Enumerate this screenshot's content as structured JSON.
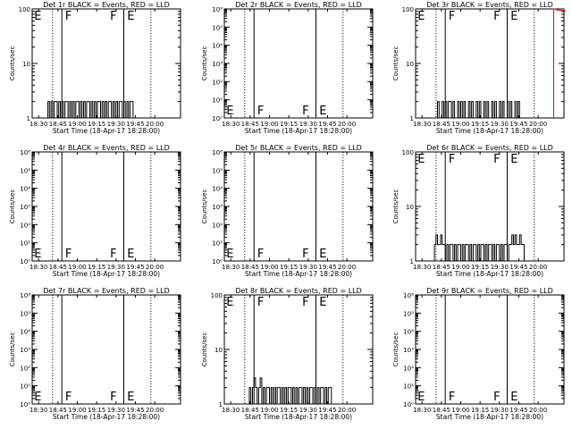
{
  "chart_data": [
    {
      "type": "line",
      "title": "Det 1r BLACK = Events, RED = LLD",
      "xlabel": "Start Time (18-Apr-17 18:28:00)",
      "ylabel": "Counts/sec",
      "x_ticks": [
        "18:30",
        "18:45",
        "19:00",
        "19:15",
        "19:30",
        "19:45",
        "20:00"
      ],
      "y_scale": "log",
      "ylim": [
        1,
        100
      ],
      "y_ticks": [
        "1",
        "10",
        "100"
      ],
      "annotations": [
        "E",
        "F",
        "F",
        "E"
      ],
      "series": [
        {
          "color": "#000000",
          "x": [
            18.6,
            18.62,
            18.64,
            18.66,
            18.68,
            18.7,
            18.72,
            18.74,
            18.76,
            18.78,
            18.8,
            18.82,
            18.84,
            18.86,
            18.88,
            18.9,
            18.92,
            18.94,
            18.96,
            18.98,
            19.0,
            19.02,
            19.04,
            19.06,
            19.08,
            19.1,
            19.12,
            19.14,
            19.16,
            19.18,
            19.2,
            19.22,
            19.24,
            19.26,
            19.28,
            19.3,
            19.32,
            19.34,
            19.36,
            19.38,
            19.4,
            19.42,
            19.44,
            19.46,
            19.48,
            19.5,
            19.52,
            19.54,
            19.56,
            19.58,
            19.6,
            19.62,
            19.64,
            19.66,
            19.68,
            19.7,
            19.72
          ],
          "y": [
            1,
            2,
            1,
            2,
            1,
            2,
            2,
            1,
            2,
            1,
            2,
            1,
            2,
            2,
            1,
            2,
            1,
            2,
            1,
            2,
            2,
            1,
            2,
            1,
            2,
            1,
            2,
            2,
            1,
            2,
            1,
            2,
            1,
            2,
            2,
            1,
            2,
            1,
            2,
            1,
            2,
            2,
            1,
            2,
            1,
            2,
            1,
            2,
            2,
            1,
            2,
            1,
            2,
            1,
            2,
            2,
            1
          ]
        }
      ]
    },
    {
      "type": "line",
      "title": "Det 2r BLACK = Events, RED = LLD",
      "xlabel": "Start Time (18-Apr-17 18:28:00)",
      "ylabel": "Counts/sec",
      "x_ticks": [
        "18:30",
        "18:45",
        "19:00",
        "19:15",
        "19:30",
        "19:45",
        "20:00"
      ],
      "y_scale": "log",
      "ylim": [
        1,
        1000000
      ],
      "y_ticks": [
        "10⁰",
        "10¹",
        "10²",
        "10³",
        "10⁴",
        "10⁵",
        "10⁶"
      ],
      "annotations": [
        "E",
        "F",
        "F",
        "E"
      ],
      "series": []
    },
    {
      "type": "line",
      "title": "Det 3r BLACK = Events, RED = LLD",
      "xlabel": "Start Time (18-Apr-17 18:28:00)",
      "ylabel": "Counts/sec",
      "x_ticks": [
        "18:30",
        "18:45",
        "19:00",
        "19:15",
        "19:30",
        "19:45",
        "20:00"
      ],
      "y_scale": "log",
      "ylim": [
        1,
        100
      ],
      "y_ticks": [
        "1",
        "10",
        "100"
      ],
      "annotations": [
        "E",
        "F",
        "F",
        "E"
      ],
      "series": [
        {
          "color": "#000000",
          "x": [
            18.66,
            18.68,
            18.7,
            18.72,
            18.74,
            18.76,
            18.78,
            18.8,
            18.82,
            18.84,
            18.86,
            18.88,
            18.9,
            18.92,
            18.94,
            18.96,
            18.98,
            19.0,
            19.02,
            19.04,
            19.06,
            19.08,
            19.1,
            19.12,
            19.14,
            19.16,
            19.18,
            19.2,
            19.22,
            19.24,
            19.26,
            19.28,
            19.3,
            19.32,
            19.34,
            19.36,
            19.38,
            19.4,
            19.42,
            19.44,
            19.46,
            19.48,
            19.5,
            19.52,
            19.54,
            19.56,
            19.58,
            19.6,
            19.62,
            19.64,
            19.66,
            19.68,
            19.7,
            19.72,
            19.74,
            19.76,
            19.78
          ],
          "y": [
            1,
            1,
            2,
            1,
            1,
            2,
            1,
            2,
            1,
            2,
            2,
            1,
            2,
            1,
            1,
            2,
            1,
            2,
            1,
            2,
            1,
            1,
            2,
            1,
            2,
            1,
            1,
            2,
            1,
            2,
            1,
            1,
            2,
            1,
            2,
            1,
            1,
            2,
            1,
            2,
            1,
            1,
            2,
            1,
            2,
            1,
            1,
            2,
            1,
            2,
            1,
            1,
            2,
            1,
            2,
            1,
            1
          ]
        },
        {
          "color": "#ff0000",
          "x": [
            20.2,
            20.22,
            20.24,
            20.26,
            20.28,
            20.3,
            20.32,
            20.34
          ],
          "y": [
            100,
            98,
            96,
            95,
            94,
            93,
            93,
            92
          ]
        }
      ]
    },
    {
      "type": "line",
      "title": "Det 4r BLACK = Events, RED = LLD",
      "xlabel": "Start Time (18-Apr-17 18:28:00)",
      "ylabel": "Counts/sec",
      "x_ticks": [
        "18:30",
        "18:45",
        "19:00",
        "19:15",
        "19:30",
        "19:45",
        "20:00"
      ],
      "y_scale": "log",
      "ylim": [
        1,
        1000000
      ],
      "y_ticks": [
        "10⁰",
        "10¹",
        "10²",
        "10³",
        "10⁴",
        "10⁵",
        "10⁶"
      ],
      "annotations": [
        "E",
        "F",
        "F",
        "E"
      ],
      "series": []
    },
    {
      "type": "line",
      "title": "Det 5r BLACK = Events, RED = LLD",
      "xlabel": "Start Time (18-Apr-17 18:28:00)",
      "ylabel": "Counts/sec",
      "x_ticks": [
        "18:30",
        "18:45",
        "19:00",
        "19:15",
        "19:30",
        "19:45",
        "20:00"
      ],
      "y_scale": "log",
      "ylim": [
        1,
        1000000
      ],
      "y_ticks": [
        "10⁰",
        "10¹",
        "10²",
        "10³",
        "10⁴",
        "10⁵",
        "10⁶"
      ],
      "annotations": [
        "E",
        "F",
        "F",
        "E"
      ],
      "series": []
    },
    {
      "type": "line",
      "title": "Det 6r BLACK = Events, RED = LLD",
      "xlabel": "Start Time (18-Apr-17 18:28:00)",
      "ylabel": "Counts/sec",
      "x_ticks": [
        "18:30",
        "18:45",
        "19:00",
        "19:15",
        "19:30",
        "19:45",
        "20:00"
      ],
      "y_scale": "log",
      "ylim": [
        1,
        100
      ],
      "y_ticks": [
        "1",
        "10",
        "100"
      ],
      "annotations": [
        "E",
        "F",
        "F",
        "E"
      ],
      "series": [
        {
          "color": "#000000",
          "x": [
            18.64,
            18.66,
            18.68,
            18.7,
            18.72,
            18.74,
            18.76,
            18.78,
            18.8,
            18.82,
            18.84,
            18.86,
            18.88,
            18.9,
            18.92,
            18.94,
            18.96,
            18.98,
            19.0,
            19.02,
            19.04,
            19.06,
            19.08,
            19.1,
            19.12,
            19.14,
            19.16,
            19.18,
            19.2,
            19.22,
            19.24,
            19.26,
            19.28,
            19.3,
            19.32,
            19.34,
            19.36,
            19.38,
            19.4,
            19.42,
            19.44,
            19.46,
            19.48,
            19.5,
            19.52,
            19.54,
            19.56,
            19.58,
            19.6,
            19.62,
            19.64,
            19.66,
            19.68,
            19.7,
            19.72,
            19.74,
            19.76,
            19.78,
            19.8,
            19.82
          ],
          "y": [
            1,
            2,
            3,
            2,
            2,
            3,
            2,
            2,
            1,
            2,
            1,
            2,
            2,
            1,
            2,
            1,
            2,
            2,
            1,
            2,
            1,
            2,
            2,
            1,
            2,
            1,
            2,
            2,
            1,
            2,
            1,
            2,
            2,
            1,
            2,
            1,
            2,
            2,
            1,
            2,
            1,
            2,
            2,
            1,
            2,
            1,
            2,
            2,
            1,
            2,
            2,
            3,
            2,
            3,
            2,
            2,
            3,
            2,
            2,
            1
          ]
        }
      ]
    },
    {
      "type": "line",
      "title": "Det 7r BLACK = Events, RED = LLD",
      "xlabel": "Start Time (18-Apr-17 18:28:00)",
      "ylabel": "Counts/sec",
      "x_ticks": [
        "18:30",
        "18:45",
        "19:00",
        "19:15",
        "19:30",
        "19:45",
        "20:00"
      ],
      "y_scale": "log",
      "ylim": [
        1,
        1000000
      ],
      "y_ticks": [
        "10⁰",
        "10¹",
        "10²",
        "10³",
        "10⁴",
        "10⁵",
        "10⁶"
      ],
      "annotations": [
        "E",
        "F",
        "F",
        "E"
      ],
      "series": []
    },
    {
      "type": "line",
      "title": "Det 8r BLACK = Events, RED = LLD",
      "xlabel": "Start Time (18-Apr-17 18:28:00)",
      "ylabel": "Counts/sec",
      "x_ticks": [
        "18:30",
        "18:45",
        "19:00",
        "19:15",
        "19:30",
        "19:45",
        "20:00"
      ],
      "y_scale": "log",
      "ylim": [
        1,
        100
      ],
      "y_ticks": [
        "1",
        "10",
        "100"
      ],
      "annotations": [
        "E",
        "F",
        "F",
        "E"
      ],
      "series": [
        {
          "color": "#000000",
          "x": [
            18.72,
            18.74,
            18.76,
            18.78,
            18.8,
            18.82,
            18.84,
            18.86,
            18.88,
            18.9,
            18.92,
            18.94,
            18.96,
            18.98,
            19.0,
            19.02,
            19.04,
            19.06,
            19.08,
            19.1,
            19.12,
            19.14,
            19.16,
            19.18,
            19.2,
            19.22,
            19.24,
            19.26,
            19.28,
            19.3,
            19.32,
            19.34,
            19.36,
            19.38,
            19.4,
            19.42,
            19.44,
            19.46,
            19.48,
            19.5,
            19.52,
            19.54,
            19.56,
            19.58,
            19.6,
            19.62,
            19.64,
            19.66,
            19.68,
            19.7,
            19.72,
            19.74,
            19.76,
            19.78,
            19.8,
            19.82
          ],
          "y": [
            1,
            2,
            1,
            2,
            3,
            2,
            1,
            2,
            3,
            1,
            2,
            1,
            2,
            2,
            1,
            2,
            1,
            2,
            1,
            2,
            2,
            1,
            2,
            1,
            2,
            1,
            2,
            2,
            1,
            2,
            1,
            2,
            1,
            2,
            2,
            1,
            2,
            1,
            2,
            1,
            2,
            2,
            1,
            2,
            1,
            2,
            1,
            2,
            2,
            1,
            2,
            1,
            2,
            2,
            1,
            1
          ]
        }
      ]
    },
    {
      "type": "line",
      "title": "Det 9r BLACK = Events, RED = LLD",
      "xlabel": "Start Time (18-Apr-17 18:28:00)",
      "ylabel": "Counts/sec",
      "x_ticks": [
        "18:30",
        "18:45",
        "19:00",
        "19:15",
        "19:30",
        "19:45",
        "20:00"
      ],
      "y_scale": "log",
      "ylim": [
        1,
        1000000
      ],
      "y_ticks": [
        "10⁰",
        "10¹",
        "10²",
        "10³",
        "10⁴",
        "10⁵",
        "10⁶"
      ],
      "annotations": [
        "E",
        "F",
        "F",
        "E"
      ],
      "series": []
    }
  ]
}
